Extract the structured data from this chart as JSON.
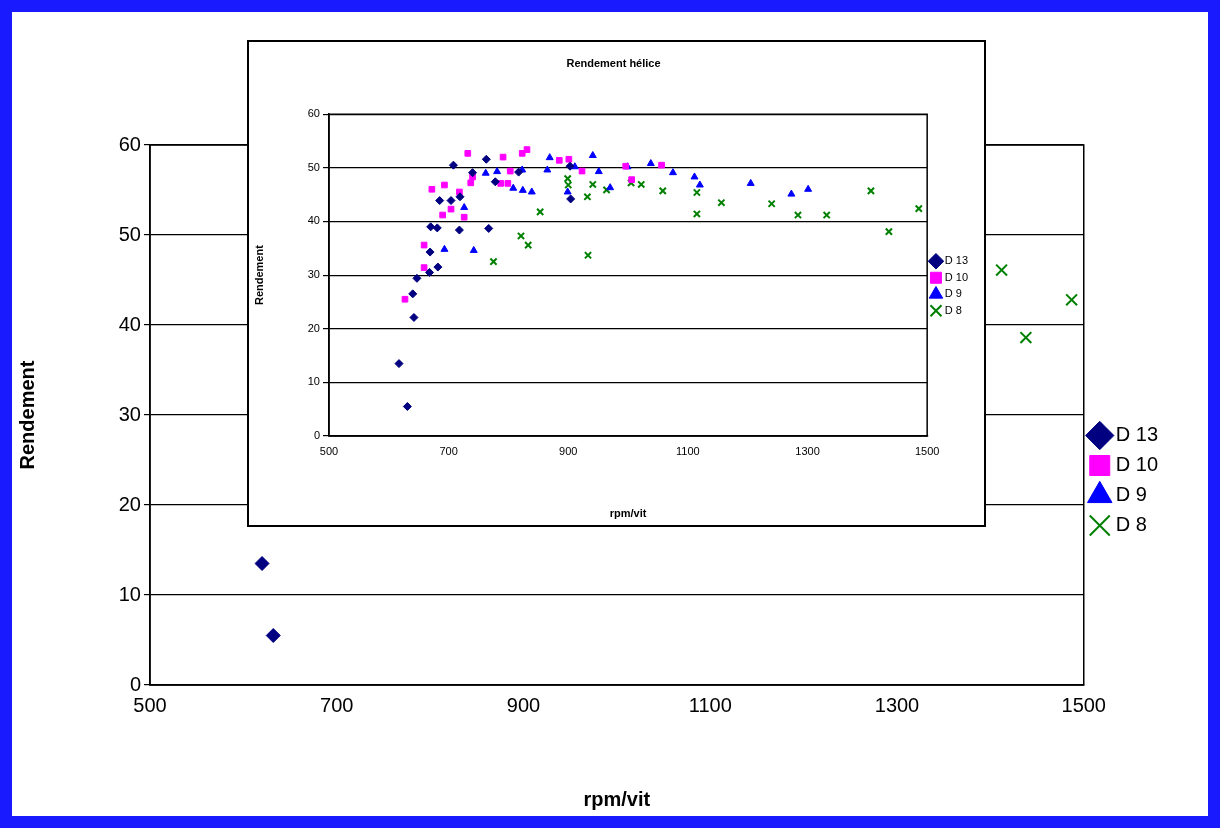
{
  "chart_data": [
    {
      "type": "scatter",
      "xlabel": "rpm/vit",
      "ylabel": "Rendement",
      "xlim": [
        500,
        1500
      ],
      "xticks": [
        500,
        700,
        900,
        1100,
        1300,
        1500
      ],
      "ylim": [
        0,
        60
      ],
      "yticks": [
        0,
        10,
        20,
        30,
        40,
        50,
        60
      ],
      "grid": "y",
      "legend": "right",
      "series": [
        {
          "name": "D 13",
          "color": "#000080",
          "marker": "diamond",
          "x": [
            620,
            632
          ],
          "values": [
            13.5,
            5.5
          ]
        },
        {
          "name": "D 10",
          "color": "#ff00ff",
          "marker": "square"
        },
        {
          "name": "D 9",
          "color": "#0000ff",
          "marker": "triangle"
        },
        {
          "name": "D 8",
          "color": "#008000",
          "marker": "cross",
          "x": [
            1412,
            1438,
            1487
          ],
          "values": [
            46.1,
            38.6,
            42.8
          ]
        }
      ]
    },
    {
      "type": "scatter",
      "title": "Rendement hélice",
      "xlabel": "rpm/vit",
      "ylabel": "Rendement",
      "xlim": [
        500,
        1500
      ],
      "xticks": [
        500,
        700,
        900,
        1100,
        1300,
        1500
      ],
      "ylim": [
        0,
        60
      ],
      "yticks": [
        0,
        10,
        20,
        30,
        40,
        50,
        60
      ],
      "grid": "y",
      "legend": "right",
      "series": [
        {
          "name": "D 13",
          "color": "#000080",
          "marker": "diamond",
          "x": [
            617,
            631,
            642,
            640,
            647,
            668,
            669,
            670,
            681,
            682,
            685,
            704,
            708,
            718,
            719,
            740,
            763,
            767,
            778,
            817,
            903,
            904
          ],
          "values": [
            13.5,
            5.5,
            22.1,
            26.5,
            29.4,
            30.5,
            34.3,
            39.0,
            38.8,
            31.5,
            43.9,
            43.9,
            50.5,
            38.4,
            44.6,
            49.1,
            51.6,
            38.7,
            47.4,
            49.2,
            50.3,
            44.2
          ]
        },
        {
          "name": "D 10",
          "color": "#ff00ff",
          "marker": "square",
          "x": [
            627,
            659,
            659,
            672,
            693,
            690,
            704,
            718,
            726,
            732,
            737,
            740,
            791,
            787,
            799,
            803,
            823,
            831,
            885,
            901,
            923,
            996,
            1006,
            1056
          ],
          "values": [
            25.5,
            31.4,
            35.6,
            46.0,
            46.8,
            41.2,
            42.3,
            45.5,
            40.8,
            52.7,
            47.2,
            48.3,
            52.0,
            47.1,
            47.1,
            49.4,
            52.7,
            53.4,
            51.4,
            51.6,
            49.4,
            50.3,
            47.8,
            50.5
          ]
        },
        {
          "name": "D 9",
          "color": "#0000ff",
          "marker": "triangle",
          "x": [
            693,
            726,
            742,
            762,
            781,
            808,
            823,
            824,
            839,
            865,
            869,
            899,
            911,
            941,
            951,
            970,
            999,
            1038,
            1075,
            1111,
            1120,
            1205,
            1273,
            1301
          ],
          "values": [
            34.8,
            42.6,
            34.6,
            49.0,
            49.3,
            46.2,
            49.6,
            45.8,
            45.5,
            49.6,
            51.9,
            45.5,
            50.2,
            52.3,
            49.3,
            46.3,
            50.2,
            50.8,
            49.1,
            48.3,
            46.8,
            47.1,
            45.1,
            46.0
          ]
        },
        {
          "name": "D 8",
          "color": "#008000",
          "marker": "cross",
          "x": [
            775,
            821,
            833,
            853,
            899,
            900,
            932,
            933,
            941,
            964,
            1005,
            1022,
            1058,
            1115,
            1115,
            1156,
            1240,
            1284,
            1332,
            1406,
            1436,
            1486
          ],
          "values": [
            32.5,
            37.3,
            35.6,
            41.8,
            48.0,
            46.8,
            44.6,
            33.7,
            46.9,
            45.9,
            47.2,
            46.9,
            45.7,
            45.4,
            41.4,
            43.5,
            43.3,
            41.2,
            41.2,
            45.7,
            38.1,
            42.4
          ]
        }
      ]
    }
  ]
}
